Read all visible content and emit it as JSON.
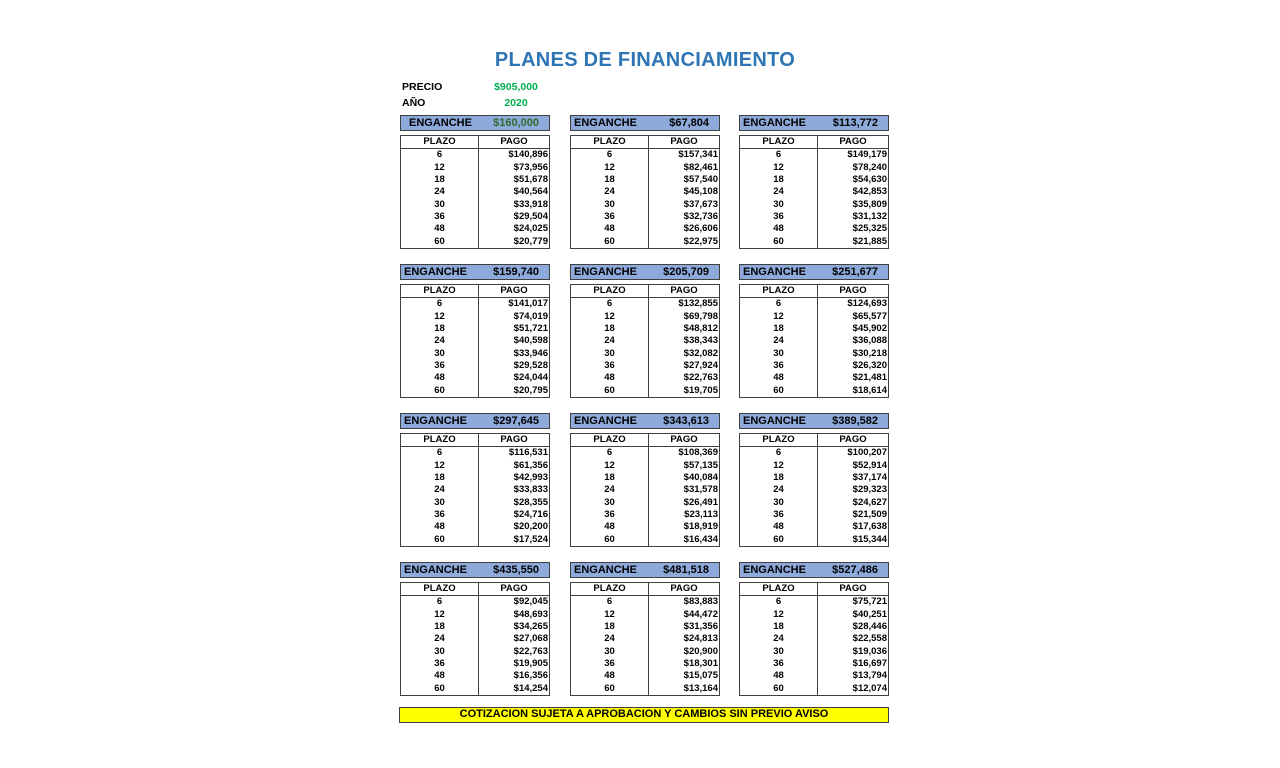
{
  "title": "PLANES DE FINANCIAMIENTO",
  "precio_label": "PRECIO",
  "precio_value": "$905,000",
  "anio_label": "AÑO",
  "anio_value": "2020",
  "enganche_label": "ENGANCHE",
  "plazo_header": "PLAZO",
  "pago_header": "PAGO",
  "plazos": [
    "6",
    "12",
    "18",
    "24",
    "30",
    "36",
    "48",
    "60"
  ],
  "highlight_color": "#00b050",
  "plans": [
    {
      "enganche": "$160,000",
      "pagos": [
        "$140,896",
        "$73,956",
        "$51,678",
        "$40,564",
        "$33,918",
        "$29,504",
        "$24,025",
        "$20,779"
      ]
    },
    {
      "enganche": "$67,804",
      "pagos": [
        "$157,341",
        "$82,461",
        "$57,540",
        "$45,108",
        "$37,673",
        "$32,736",
        "$26,606",
        "$22,975"
      ]
    },
    {
      "enganche": "$113,772",
      "pagos": [
        "$149,179",
        "$78,240",
        "$54,630",
        "$42,853",
        "$35,809",
        "$31,132",
        "$25,325",
        "$21,885"
      ]
    },
    {
      "enganche": "$159,740",
      "pagos": [
        "$141,017",
        "$74,019",
        "$51,721",
        "$40,598",
        "$33,946",
        "$29,528",
        "$24,044",
        "$20,795"
      ]
    },
    {
      "enganche": "$205,709",
      "pagos": [
        "$132,855",
        "$69,798",
        "$48,812",
        "$38,343",
        "$32,082",
        "$27,924",
        "$22,763",
        "$19,705"
      ]
    },
    {
      "enganche": "$251,677",
      "pagos": [
        "$124,693",
        "$65,577",
        "$45,902",
        "$36,088",
        "$30,218",
        "$26,320",
        "$21,481",
        "$18,614"
      ]
    },
    {
      "enganche": "$297,645",
      "pagos": [
        "$116,531",
        "$61,356",
        "$42,993",
        "$33,833",
        "$28,355",
        "$24,716",
        "$20,200",
        "$17,524"
      ]
    },
    {
      "enganche": "$343,613",
      "pagos": [
        "$108,369",
        "$57,135",
        "$40,084",
        "$31,578",
        "$26,491",
        "$23,113",
        "$18,919",
        "$16,434"
      ]
    },
    {
      "enganche": "$389,582",
      "pagos": [
        "$100,207",
        "$52,914",
        "$37,174",
        "$29,323",
        "$24,627",
        "$21,509",
        "$17,638",
        "$15,344"
      ]
    },
    {
      "enganche": "$435,550",
      "pagos": [
        "$92,045",
        "$48,693",
        "$34,265",
        "$27,068",
        "$22,763",
        "$19,905",
        "$16,356",
        "$14,254"
      ]
    },
    {
      "enganche": "$481,518",
      "pagos": [
        "$83,883",
        "$44,472",
        "$31,356",
        "$24,813",
        "$20,900",
        "$18,301",
        "$15,075",
        "$13,164"
      ]
    },
    {
      "enganche": "$527,486",
      "pagos": [
        "$75,721",
        "$40,251",
        "$28,446",
        "$22,558",
        "$19,036",
        "$16,697",
        "$13,794",
        "$12,074"
      ]
    }
  ],
  "notice": "COTIZACION SUJETA A APROBACION Y CAMBIOS SIN PREVIO AVISO"
}
